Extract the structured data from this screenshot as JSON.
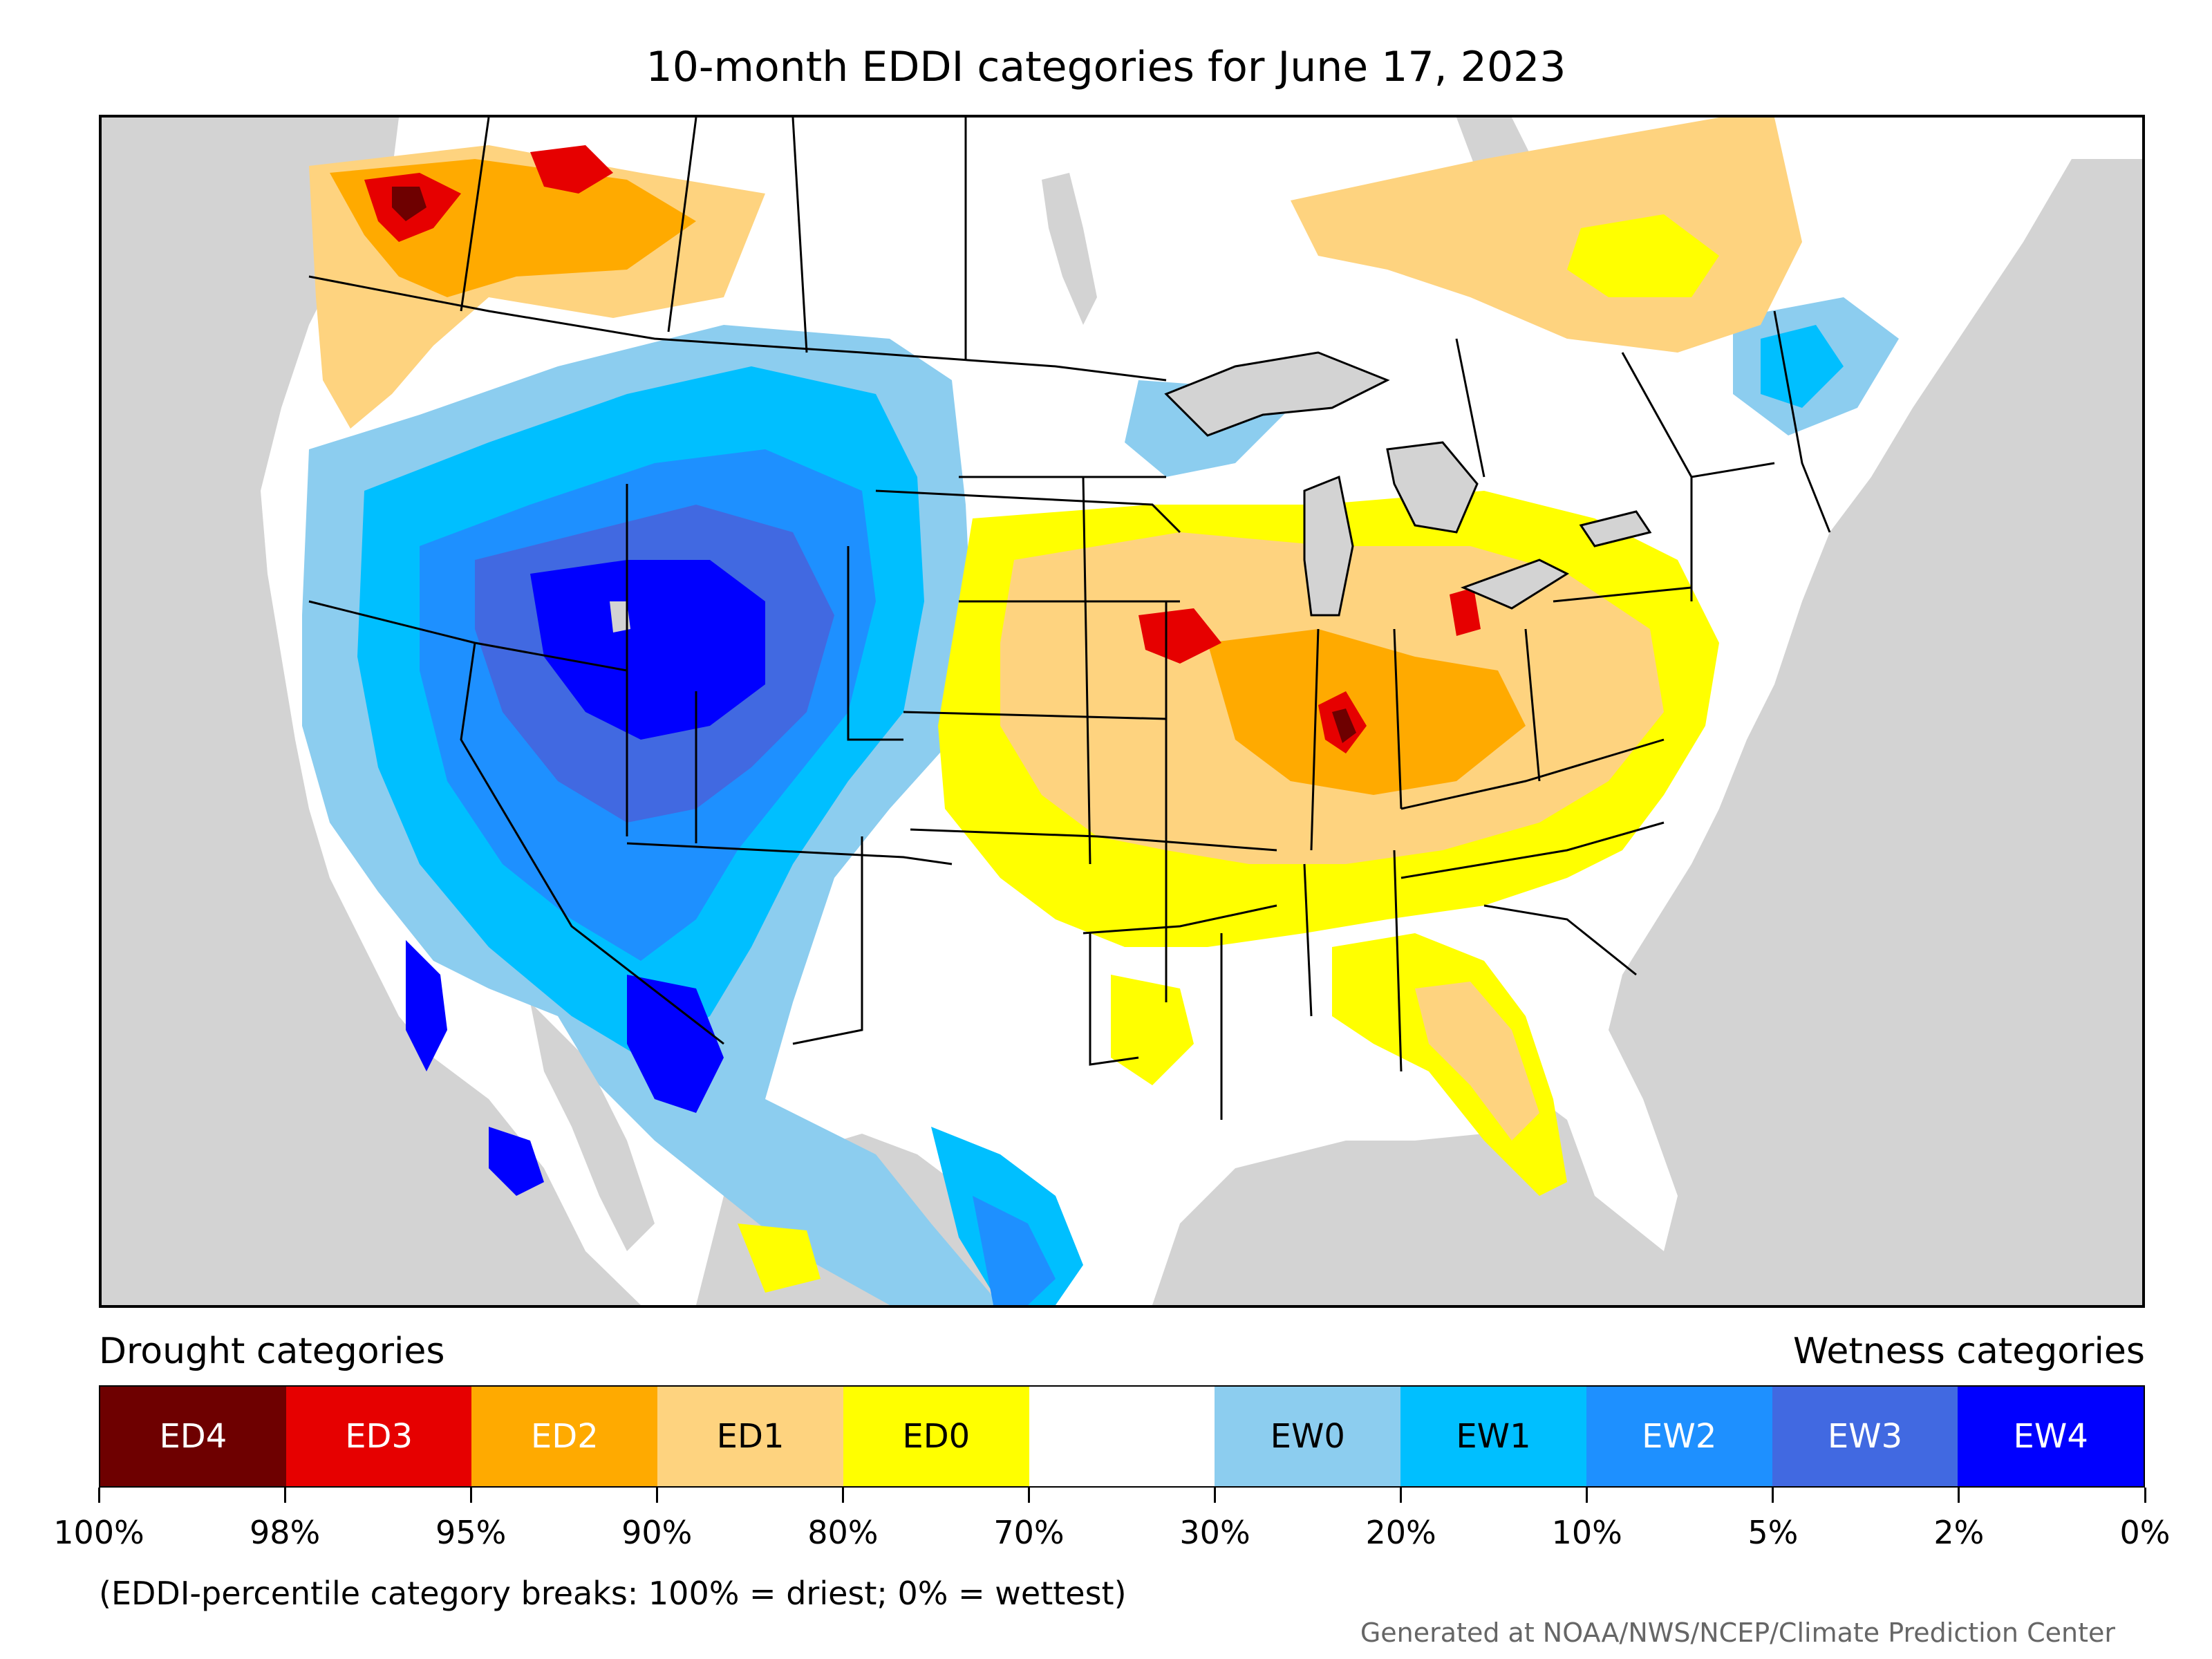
{
  "title": "10-month EDDI categories for June 17, 2023",
  "legend": {
    "drought_heading": "Drought categories",
    "wetness_heading": "Wetness categories",
    "categories": [
      {
        "label": "ED4",
        "color": "#6e0000",
        "text_color": "#ffffff"
      },
      {
        "label": "ED3",
        "color": "#e60000",
        "text_color": "#ffffff"
      },
      {
        "label": "ED2",
        "color": "#ffaa00",
        "text_color": "#ffffff"
      },
      {
        "label": "ED1",
        "color": "#fed37f",
        "text_color": "#000000"
      },
      {
        "label": "ED0",
        "color": "#ffff00",
        "text_color": "#000000"
      },
      {
        "label": "",
        "color": "#ffffff",
        "text_color": "#000000"
      },
      {
        "label": "EW0",
        "color": "#8ccdef",
        "text_color": "#000000"
      },
      {
        "label": "EW1",
        "color": "#00bfff",
        "text_color": "#000000"
      },
      {
        "label": "EW2",
        "color": "#1e90ff",
        "text_color": "#ffffff"
      },
      {
        "label": "EW3",
        "color": "#4169e1",
        "text_color": "#ffffff"
      },
      {
        "label": "EW4",
        "color": "#0000ff",
        "text_color": "#ffffff"
      }
    ],
    "breaks": [
      "100%",
      "98%",
      "95%",
      "90%",
      "80%",
      "70%",
      "30%",
      "20%",
      "10%",
      "5%",
      "2%",
      "0%"
    ]
  },
  "note": "(EDDI-percentile category breaks: 100% = driest; 0% = wettest)",
  "credit": "Generated at NOAA/NWS/NCEP/Climate Prediction Center",
  "map": {
    "land_color": "#ffffff",
    "ocean_color": "#d3d3d3",
    "border_color": "#000000"
  }
}
